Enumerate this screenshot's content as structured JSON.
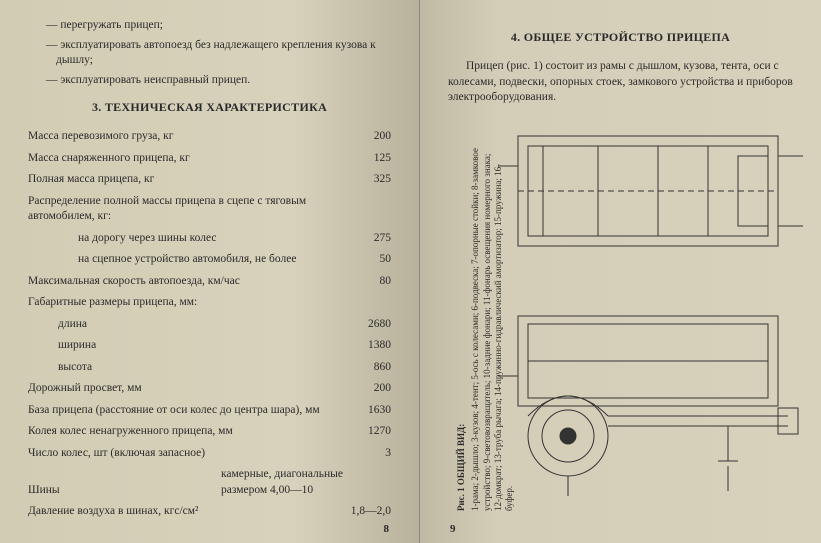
{
  "left": {
    "bullets": [
      "— перегружать прицеп;",
      "— эксплуатировать автопоезд без надлежащего крепления кузова к дышлу;",
      "— эксплуатировать неисправный прицеп."
    ],
    "section_title": "3. ТЕХНИЧЕСКАЯ ХАРАКТЕРИСТИКА",
    "specs": [
      {
        "label": "Масса перевозимого груза, кг",
        "value": "200",
        "indent": 0
      },
      {
        "label": "Масса снаряженного прицепа, кг",
        "value": "125",
        "indent": 0
      },
      {
        "label": "Полная масса прицепа, кг",
        "value": "325",
        "indent": 0
      },
      {
        "label": "Распределение полной массы прицепа в сцепе с тяговым автомобилем, кг:",
        "value": "",
        "indent": 0
      },
      {
        "label": "на дорогу через шины колес",
        "value": "275",
        "indent": 2
      },
      {
        "label": "на сцепное устройство автомобиля, не более",
        "value": "50",
        "indent": 2
      },
      {
        "label": "Максимальная скорость автопоезда, км/час",
        "value": "80",
        "indent": 0
      },
      {
        "label": "Габаритные размеры прицепа, мм:",
        "value": "",
        "indent": 0
      },
      {
        "label": "длина",
        "value": "2680",
        "indent": 1
      },
      {
        "label": "ширина",
        "value": "1380",
        "indent": 1
      },
      {
        "label": "высота",
        "value": "860",
        "indent": 1
      },
      {
        "label": "Дорожный просвет, мм",
        "value": "200",
        "indent": 0
      },
      {
        "label": "База прицепа (расстояние от оси колес до центра шара), мм",
        "value": "1630",
        "indent": 0
      },
      {
        "label": "Колея колес ненагруженного прицепа, мм",
        "value": "1270",
        "indent": 0
      },
      {
        "label": "Число колес, шт (включая запасное)",
        "value": "3",
        "indent": 0
      },
      {
        "label": "Шины",
        "value": "камерные, диагональные размером 4,00—10",
        "indent": 0,
        "wide": true
      },
      {
        "label": "Давление воздуха в шинах, кгс/см²",
        "value": "1,8—2,0",
        "indent": 0
      }
    ],
    "page_num": "8"
  },
  "right": {
    "section_title": "4. ОБЩЕЕ УСТРОЙСТВО ПРИЦЕПА",
    "paragraph": "Прицеп (рис. 1) состоит из рамы с дышлом, кузова, тента, оси с колесами, подвески, опорных стоек, замкового устройства и приборов электрооборудования.",
    "figure_caption_title": "Рис. 1 ОБЩИЙ ВИД:",
    "figure_caption_body": "1-рама; 2-дышло; 3-кузов; 4-тент; 5-ось с колесами; 6-подвеска; 7-опорные стойки; 8-замковое устройство; 9-световозвращатель; 10-задние фонари; 11-фонарь освещения номерного знака; 12-домкрат; 13-труба рычага; 14-пружинно-гидравлический амортизатор; 15-пружина; 16-буфер.",
    "page_num": "9"
  },
  "colors": {
    "text": "#2a2a2a",
    "paper_left": "#d8d2bc",
    "paper_right": "#d4cdb8",
    "line": "#333333"
  }
}
